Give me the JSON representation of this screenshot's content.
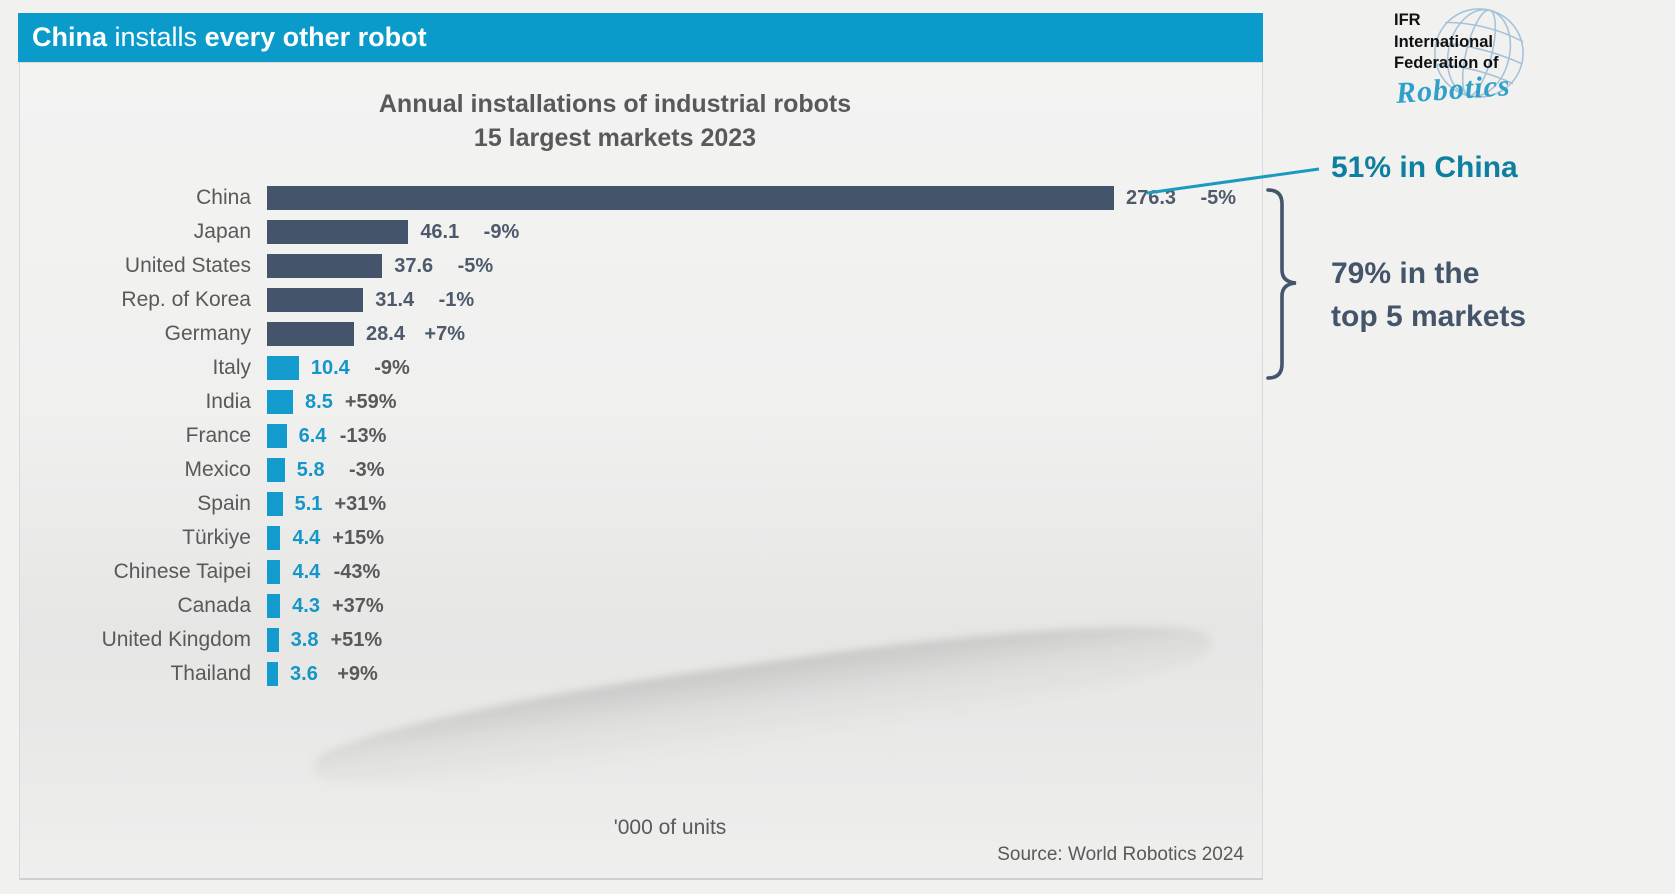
{
  "header": {
    "bold_lead": "China",
    "mid": " installs ",
    "bold_tail": "every other robot",
    "bg_color": "#0A9BCB",
    "text_color": "#FFFFFF"
  },
  "logo": {
    "line1": "IFR",
    "line2": "International",
    "line3": "Federation of",
    "script": "Robotics",
    "globe_icon": "globe-wireframe-icon",
    "script_color": "#2FA0C8"
  },
  "chart_data": {
    "type": "bar",
    "orientation": "horizontal",
    "title": "Annual installations of industrial robots",
    "subtitle": "15 largest markets 2023",
    "unit_label": "'000 of units",
    "source": "Source: World Robotics 2024",
    "categories": [
      "China",
      "Japan",
      "United States",
      "Rep. of Korea",
      "Germany",
      "Italy",
      "India",
      "France",
      "Mexico",
      "Spain",
      "Türkiye",
      "Chinese Taipei",
      "Canada",
      "United Kingdom",
      "Thailand"
    ],
    "values": [
      276.3,
      46.1,
      37.6,
      31.4,
      28.4,
      10.4,
      8.5,
      6.4,
      5.8,
      5.1,
      4.4,
      4.4,
      4.3,
      3.8,
      3.6
    ],
    "change_labels": [
      "-5%",
      "-9%",
      "-5%",
      "-1%",
      "+7%",
      "-9%",
      "+59%",
      "-13%",
      "-3%",
      "+31%",
      "+15%",
      "-43%",
      "+37%",
      "+51%",
      "+9%"
    ],
    "xlim": [
      0,
      276.3
    ],
    "top5_count": 5,
    "grid": false,
    "legend": false,
    "colors": {
      "top5_bar": "#44546A",
      "other_bar": "#149BCD",
      "top5_value_text": "#4E5A6B",
      "other_value_text": "#1496C8",
      "change_text": "#595959",
      "category_text": "#595959",
      "title_text": "#595959"
    }
  },
  "annotations": {
    "china_share": "51% in China",
    "china_share_color": "#0E7F9F",
    "top5_share_line1": "79% in the",
    "top5_share_line2": "top 5 markets",
    "top5_share_color": "#44546A",
    "callout_line_color": "#1B9AC0",
    "bracket_color": "#44546A"
  }
}
